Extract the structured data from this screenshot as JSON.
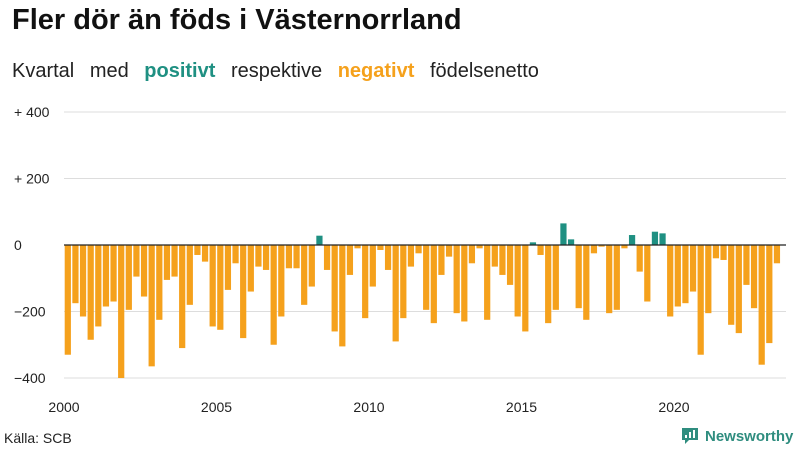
{
  "title": "Fler dör än föds i Västernorrland",
  "subtitle": {
    "w1": "Kvartal",
    "w2": "med",
    "positive": "positivt",
    "w3": "respektive",
    "negative": "negativt",
    "w4": "födelsenetto"
  },
  "source": "Källa: SCB",
  "brand": "Newsworthy",
  "colors": {
    "positive": "#1f9082",
    "negative": "#f5a11c",
    "grid": "#dddddd",
    "axis": "#222222"
  },
  "chart_data": {
    "type": "bar",
    "title": "Fler dör än föds i Västernorrland",
    "xlabel": "",
    "ylabel": "",
    "ylim": [
      -400,
      400
    ],
    "y_ticks": [
      400,
      200,
      0,
      -200,
      -400
    ],
    "y_tick_labels": [
      "+ 400",
      "+ 200",
      "0",
      "−200",
      "−400"
    ],
    "x_ticks": [
      2000,
      2005,
      2010,
      2015,
      2020
    ],
    "x_tick_labels": [
      "2000",
      "2005",
      "2010",
      "2015",
      "2020"
    ],
    "grid": true,
    "start": "2000 Q1",
    "frequency": "quarterly",
    "values": [
      -330,
      -175,
      -215,
      -285,
      -245,
      -185,
      -170,
      -400,
      -195,
      -95,
      -155,
      -365,
      -225,
      -105,
      -95,
      -310,
      -180,
      -30,
      -50,
      -245,
      -255,
      -135,
      -55,
      -280,
      -140,
      -65,
      -75,
      -300,
      -215,
      -70,
      -70,
      -180,
      -125,
      28,
      -75,
      -260,
      -305,
      -90,
      -10,
      -220,
      -125,
      -15,
      -75,
      -290,
      -220,
      -65,
      -25,
      -195,
      -235,
      -90,
      -35,
      -205,
      -230,
      -55,
      -10,
      -225,
      -65,
      -90,
      -120,
      -215,
      -260,
      8,
      -30,
      -235,
      -195,
      65,
      17,
      -190,
      -225,
      -25,
      -5,
      -205,
      -195,
      -10,
      30,
      -80,
      -170,
      40,
      35,
      -215,
      -185,
      -175,
      -140,
      -330,
      -205,
      -40,
      -45,
      -240,
      -265,
      -120,
      -190,
      -360,
      -295,
      -55
    ]
  }
}
